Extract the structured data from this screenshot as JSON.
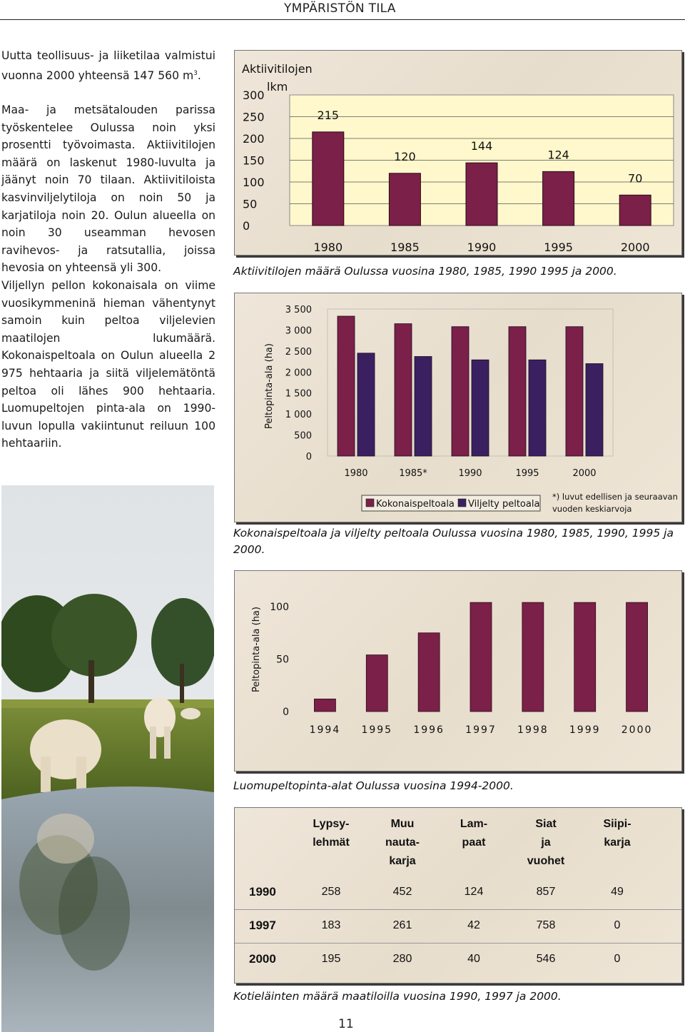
{
  "header": {
    "title": "YMPÄRISTÖN TILA"
  },
  "text": {
    "p1_main": "Uutta teollisuus- ja liiketilaa valmistui vuonna 2000 yhteensä 147 560 m",
    "p1_sup": "3",
    "p1_end": ".",
    "p2": "Maa- ja metsätalouden parissa työskentelee Oulussa noin yksi prosentti työvoimasta. Aktiivitilojen määrä on laskenut 1980-luvulta ja jäänyt noin 70 tilaan. Aktiivitiloista kasvinviljelytiloja on noin 50 ja karjatiloja noin 20. Oulun alueella on noin 30 useamman hevosen ravihevos- ja ratsutallia, joissa hevosia on yhteensä yli 300.",
    "p3": "Viljellyn pellon kokonaisala on viime vuosikymmeninä hieman vähentynyt samoin kuin peltoa viljelevien maatilojen lukumäärä. Kokonaispeltoala on Oulun alueella 2 975 hehtaaria ja siitä viljelemätöntä peltoa oli lähes 900 hehtaaria. Luomupeltojen pinta-ala on 1990-luvun lopulla vakiintunut reiluun 100 hehtaariin."
  },
  "colors": {
    "bar_fill": "#7b2048",
    "bar_fill2": "#3a2060",
    "plot_bg": "#fff8cc"
  },
  "chart_data": [
    {
      "type": "bar",
      "title": "",
      "ylabel_line1": "Aktiivitilojen",
      "ylabel_line2": "lkm",
      "xlabel": "",
      "categories": [
        "1980",
        "1985",
        "1990",
        "1995",
        "2000"
      ],
      "values": [
        215,
        120,
        144,
        124,
        70
      ],
      "data_labels": [
        "215",
        "120",
        "144",
        "124",
        "70"
      ],
      "yticks": [
        "300",
        "250",
        "200",
        "150",
        "100",
        "50",
        "0"
      ],
      "ylim": [
        0,
        300
      ],
      "grid": true,
      "caption": "Aktiivitilojen määrä Oulussa vuosina 1980, 1985, 1990 1995 ja 2000."
    },
    {
      "type": "bar",
      "ylabel": "Peltopinta-ala (ha)",
      "categories": [
        "1980",
        "1985*",
        "1990",
        "1995",
        "2000"
      ],
      "series": [
        {
          "name": "Kokonaispeltoala",
          "values": [
            3330,
            3150,
            3080,
            3080,
            3080
          ]
        },
        {
          "name": "Viljelty peltoala",
          "values": [
            2450,
            2370,
            2290,
            2290,
            2200
          ]
        }
      ],
      "yticks": [
        "3 500",
        "3 000",
        "2 500",
        "2 000",
        "1 500",
        "1 000",
        "500",
        "0"
      ],
      "ylim": [
        0,
        3500
      ],
      "legend_position": "bottom",
      "footnote": "*) luvut edellisen ja seuraavan vuoden keskiarvoja",
      "caption": "Kokonaispeltoala ja viljelty peltoala Oulussa vuosina 1980, 1985, 1990, 1995 ja 2000."
    },
    {
      "type": "bar",
      "ylabel": "Peltopinta-ala (ha)",
      "categories": [
        "1994",
        "1995",
        "1996",
        "1997",
        "1998",
        "1999",
        "2000"
      ],
      "values": [
        12,
        54,
        75,
        104,
        104,
        104,
        104
      ],
      "yticks": [
        "100",
        "50",
        "0"
      ],
      "ylim": [
        0,
        100
      ],
      "caption": "Luomupeltopinta-alat Oulussa vuosina 1994-2000."
    },
    {
      "type": "table",
      "headers": [
        [
          "Lypsy-",
          "lehmät"
        ],
        [
          "Muu",
          "nauta-",
          "karja"
        ],
        [
          "Lam-",
          "paat"
        ],
        [
          "Siat",
          "ja",
          "vuohet"
        ],
        [
          "Siipi-",
          "karja"
        ]
      ],
      "rows": [
        {
          "year": "1990",
          "values": [
            "258",
            "452",
            "124",
            "857",
            "49"
          ]
        },
        {
          "year": "1997",
          "values": [
            "183",
            "261",
            "42",
            "758",
            "0"
          ]
        },
        {
          "year": "2000",
          "values": [
            "195",
            "280",
            "40",
            "546",
            "0"
          ]
        }
      ],
      "caption": "Kotieläinten määrä maatiloilla vuosina 1990, 1997 ja 2000."
    }
  ],
  "page_number": "11"
}
